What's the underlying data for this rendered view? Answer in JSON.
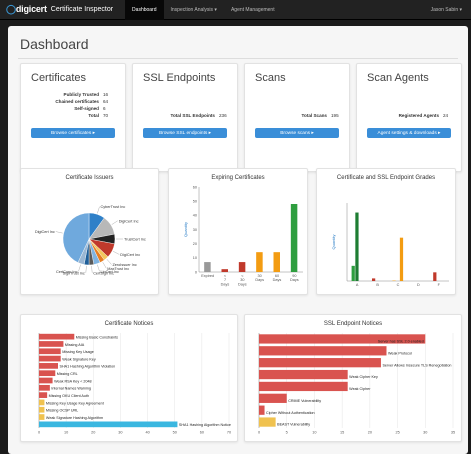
{
  "navbar": {
    "brand_logo": "digicert",
    "brand_app": "Certificate Inspector",
    "items": [
      {
        "label": "Dashboard",
        "active": true
      },
      {
        "label": "Inspection Analysis ▾",
        "active": false
      },
      {
        "label": "Agent Management",
        "active": false
      }
    ],
    "user": "Jason Sabin ▾"
  },
  "page": {
    "title": "Dashboard"
  },
  "summary_cards": [
    {
      "title": "Certificates",
      "rows": [
        {
          "label": "Publicly Trusted",
          "value": "16"
        },
        {
          "label": "Chained certificates",
          "value": "64"
        },
        {
          "label": "Self-signed",
          "value": "6"
        },
        {
          "label": "Total",
          "value": "70"
        }
      ],
      "button": "Browse certificates ▸"
    },
    {
      "title": "SSL Endpoints",
      "rows": [
        {
          "label": "Total SSL Endpoints",
          "value": "236"
        }
      ],
      "button": "Browse SSL endpoints ▸"
    },
    {
      "title": "Scans",
      "rows": [
        {
          "label": "Total Scans",
          "value": "195"
        }
      ],
      "button": "Browse scans ▸"
    },
    {
      "title": "Scan Agents",
      "rows": [
        {
          "label": "Registered Agents",
          "value": "24"
        }
      ],
      "button": "Agent settings & downloads ▸"
    }
  ],
  "chart_data": [
    {
      "type": "pie",
      "title": "Certificate Issuers",
      "labels": [
        "CyberTrust Inc",
        "DigiCert Inc",
        "TrustCert Inc",
        "DigiCert Inc",
        "ZeroIssuer Inc",
        "MaxTrust Inc",
        "LinCert Inc",
        "CertSign Inc",
        "SignTrust Inc",
        "CertCorp Inc",
        "DigiCert Inc"
      ],
      "values": [
        10,
        12,
        6,
        9,
        3,
        3,
        4,
        3,
        3,
        4,
        43
      ],
      "colors": [
        "#2f80c8",
        "#b8b8b8",
        "#222222",
        "#c0392b",
        "#f2c75c",
        "#e67e22",
        "#7fb3e0",
        "#5a5a5a",
        "#1f5f99",
        "#9ab7d4",
        "#6fa9dd"
      ]
    },
    {
      "type": "bar",
      "title": "Expiring Certificates",
      "ylabel": "Quantity",
      "categories": [
        "Expired",
        "< 7 Days",
        "< 30 Days",
        "30 Days",
        "60 Days",
        "90 Days"
      ],
      "values": [
        7,
        2,
        7,
        14,
        14,
        48
      ],
      "colors": [
        "#999999",
        "#c0392b",
        "#c0392b",
        "#f39c12",
        "#f39c12",
        "#2e9e3f"
      ],
      "ylim": [
        0,
        60
      ],
      "yticks": [
        0,
        10,
        20,
        30,
        40,
        50,
        60
      ]
    },
    {
      "type": "bar",
      "title": "Certificate and SSL Endpoint Grades",
      "ylabel": "Quantity",
      "categories": [
        "A",
        "B",
        "C",
        "D",
        "F"
      ],
      "series": [
        {
          "values": [
            35,
            6,
            1,
            0,
            20
          ],
          "colors": [
            "#2e9e3f",
            "#c0392b",
            "#f39c12",
            "#f39c12",
            "#c0392b"
          ]
        },
        {
          "values": [
            158,
            0,
            0,
            0,
            0
          ],
          "colors": [
            "#1e7d33",
            "#c0392b",
            "#f39c12",
            "#f39c12",
            "#c0392b"
          ]
        },
        {
          "values": [
            0,
            0,
            100,
            0,
            0
          ],
          "colors": [
            "#2e9e3f",
            "#c0392b",
            "#f39c12",
            "#f39c12",
            "#c0392b"
          ]
        }
      ],
      "ylim": [
        0,
        180
      ]
    },
    {
      "type": "bar",
      "orientation": "horizontal",
      "title": "Certificate Notices",
      "categories": [
        "Missing Basic Constraints",
        "Missing AIA",
        "Missing Key Usage",
        "Weak Signature Key",
        "SHA1 Hashing Algorithm Violation",
        "Missing CRL",
        "Weak RSA Key < 2048",
        "Internal Names Warning",
        "Missing OKU Client Auth",
        "Missing Key Usage Key Agreement",
        "Missing OCSP URL",
        "Weak Signature Hashing Algorithm",
        "SHA1 Hashing Algorithm Notice"
      ],
      "values": [
        13,
        9,
        8,
        8,
        7,
        6,
        5,
        4,
        3,
        2,
        2,
        2,
        51
      ],
      "colors": [
        "#d9534f",
        "#d9534f",
        "#d9534f",
        "#d9534f",
        "#d9534f",
        "#d9534f",
        "#d9534f",
        "#d9534f",
        "#d9534f",
        "#f0c24f",
        "#f0c24f",
        "#f0c24f",
        "#3ab7e0"
      ],
      "xlim": [
        0,
        70
      ],
      "xticks": [
        0,
        10,
        20,
        30,
        40,
        50,
        60,
        70
      ]
    },
    {
      "type": "bar",
      "orientation": "horizontal",
      "title": "SSL Endpoint Notices",
      "categories": [
        "Server has SSL 2.0 enabled",
        "Weak Protocol",
        "Server Allows Insecure TLS Renegotiation",
        "Weak Cipher Key",
        "Weak Cipher",
        "CRIME Vulnerability",
        "Cipher Without Authentication",
        "BEAST Vulnerability"
      ],
      "values": [
        30,
        23,
        22,
        16,
        16,
        5,
        1,
        3
      ],
      "colors": [
        "#d9534f",
        "#d9534f",
        "#d9534f",
        "#d9534f",
        "#d9534f",
        "#d9534f",
        "#d9534f",
        "#f0c24f"
      ],
      "xlim": [
        0,
        35
      ],
      "xticks": [
        0,
        5,
        10,
        15,
        20,
        25,
        30,
        35
      ]
    }
  ]
}
